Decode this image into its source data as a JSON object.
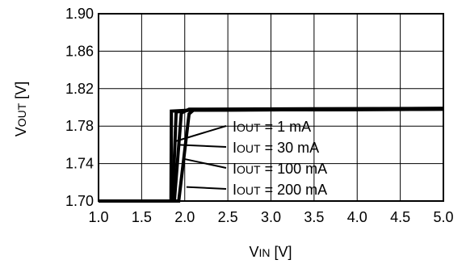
{
  "chart_data": {
    "type": "line",
    "title": "",
    "xlabel": {
      "main": "V",
      "sub": "IN",
      "unit": " [V]"
    },
    "ylabel": {
      "main": "V",
      "sub": "OUT",
      "unit": " [V]"
    },
    "xlim": [
      1.0,
      5.0
    ],
    "ylim": [
      1.7,
      1.9
    ],
    "x_ticks": [
      1.0,
      1.5,
      2.0,
      2.5,
      3.0,
      3.5,
      4.0,
      4.5,
      5.0
    ],
    "x_tick_labels": [
      "1.0",
      "1.5",
      "2.0",
      "2.5",
      "3.0",
      "3.5",
      "4.0",
      "4.5",
      "5.0"
    ],
    "y_ticks": [
      1.7,
      1.74,
      1.78,
      1.82,
      1.86,
      1.9
    ],
    "y_tick_labels": [
      "1.70",
      "1.74",
      "1.78",
      "1.82",
      "1.86",
      "1.90"
    ],
    "grid": true,
    "series": [
      {
        "name": "IOUT = 1 mA",
        "label_main": "I",
        "label_sub": "OUT",
        "label_rest": " = 1 mA",
        "x": [
          1.0,
          1.84,
          1.845,
          2.05,
          5.0
        ],
        "y": [
          1.7,
          1.7,
          1.796,
          1.797,
          1.798
        ]
      },
      {
        "name": "IOUT = 30 mA",
        "label_main": "I",
        "label_sub": "OUT",
        "label_rest": " = 30 mA",
        "x": [
          1.0,
          1.86,
          1.9,
          2.05,
          5.0
        ],
        "y": [
          1.7,
          1.7,
          1.795,
          1.797,
          1.798
        ]
      },
      {
        "name": "IOUT = 100 mA",
        "label_main": "I",
        "label_sub": "OUT",
        "label_rest": " = 100 mA",
        "x": [
          1.0,
          1.88,
          1.96,
          2.05,
          5.0
        ],
        "y": [
          1.7,
          1.7,
          1.794,
          1.798,
          1.799
        ]
      },
      {
        "name": "IOUT = 200 mA",
        "label_main": "I",
        "label_sub": "OUT",
        "label_rest": " = 200 mA",
        "x": [
          1.0,
          1.93,
          2.05,
          2.1,
          5.0
        ],
        "y": [
          1.7,
          1.7,
          1.793,
          1.797,
          1.799
        ]
      }
    ],
    "colors": {
      "line": "#000000",
      "grid": "#000000",
      "background": "#ffffff"
    }
  }
}
